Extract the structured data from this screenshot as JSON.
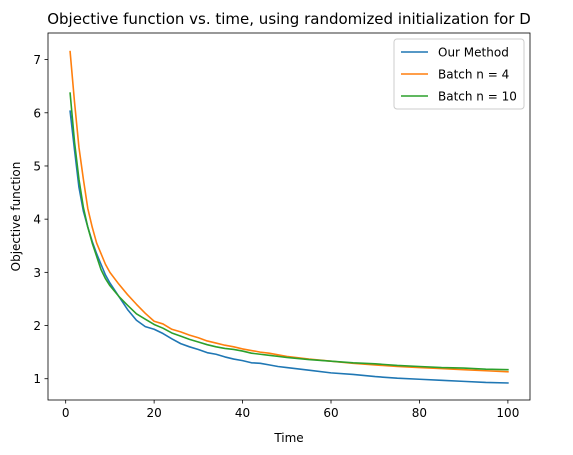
{
  "chart_data": {
    "type": "line",
    "title": "Objective function vs. time, using randomized initialization for D",
    "xlabel": "Time",
    "ylabel": "Objective function",
    "xlim": [
      -4,
      105
    ],
    "ylim": [
      0.6,
      7.5
    ],
    "xticks": [
      0,
      20,
      40,
      60,
      80,
      100
    ],
    "yticks": [
      1,
      2,
      3,
      4,
      5,
      6,
      7
    ],
    "grid": false,
    "legend_position": "top-right",
    "series": [
      {
        "name": "Our Method",
        "color": "#1f77b4",
        "x": [
          1,
          2,
          3,
          4,
          5,
          6,
          7,
          8,
          9,
          10,
          12,
          14,
          16,
          18,
          20,
          22,
          24,
          26,
          28,
          30,
          32,
          34,
          36,
          38,
          40,
          42,
          44,
          46,
          48,
          50,
          55,
          60,
          65,
          70,
          75,
          80,
          85,
          90,
          95,
          100
        ],
        "y": [
          6.03,
          5.3,
          4.6,
          4.15,
          3.85,
          3.58,
          3.35,
          3.15,
          2.95,
          2.8,
          2.55,
          2.3,
          2.1,
          1.98,
          1.93,
          1.85,
          1.75,
          1.66,
          1.6,
          1.55,
          1.49,
          1.46,
          1.41,
          1.37,
          1.34,
          1.3,
          1.29,
          1.26,
          1.23,
          1.21,
          1.16,
          1.11,
          1.08,
          1.04,
          1.01,
          0.99,
          0.97,
          0.95,
          0.93,
          0.92
        ]
      },
      {
        "name": "Batch n = 4",
        "color": "#ff7f0e",
        "x": [
          1,
          2,
          3,
          4,
          5,
          6,
          7,
          8,
          9,
          10,
          12,
          14,
          16,
          18,
          20,
          22,
          24,
          26,
          28,
          30,
          32,
          34,
          36,
          38,
          40,
          42,
          44,
          46,
          48,
          50,
          55,
          60,
          65,
          70,
          75,
          80,
          85,
          90,
          95,
          100
        ],
        "y": [
          7.15,
          6.2,
          5.35,
          4.75,
          4.2,
          3.85,
          3.55,
          3.35,
          3.15,
          3.0,
          2.78,
          2.58,
          2.4,
          2.23,
          2.08,
          2.03,
          1.93,
          1.88,
          1.82,
          1.77,
          1.71,
          1.67,
          1.63,
          1.6,
          1.56,
          1.53,
          1.5,
          1.48,
          1.45,
          1.42,
          1.37,
          1.33,
          1.29,
          1.26,
          1.23,
          1.21,
          1.19,
          1.17,
          1.15,
          1.13
        ]
      },
      {
        "name": "Batch n = 10",
        "color": "#2ca02c",
        "x": [
          1,
          2,
          3,
          4,
          5,
          6,
          7,
          8,
          9,
          10,
          12,
          14,
          16,
          18,
          20,
          22,
          24,
          26,
          28,
          30,
          32,
          34,
          36,
          38,
          40,
          42,
          44,
          46,
          48,
          50,
          55,
          60,
          65,
          70,
          75,
          80,
          85,
          90,
          95,
          100
        ],
        "y": [
          6.37,
          5.45,
          4.75,
          4.22,
          3.85,
          3.55,
          3.3,
          3.05,
          2.88,
          2.75,
          2.55,
          2.38,
          2.22,
          2.12,
          2.02,
          1.95,
          1.86,
          1.8,
          1.74,
          1.69,
          1.64,
          1.6,
          1.57,
          1.55,
          1.52,
          1.48,
          1.46,
          1.44,
          1.42,
          1.4,
          1.36,
          1.33,
          1.3,
          1.28,
          1.25,
          1.23,
          1.21,
          1.2,
          1.18,
          1.17
        ]
      }
    ]
  }
}
